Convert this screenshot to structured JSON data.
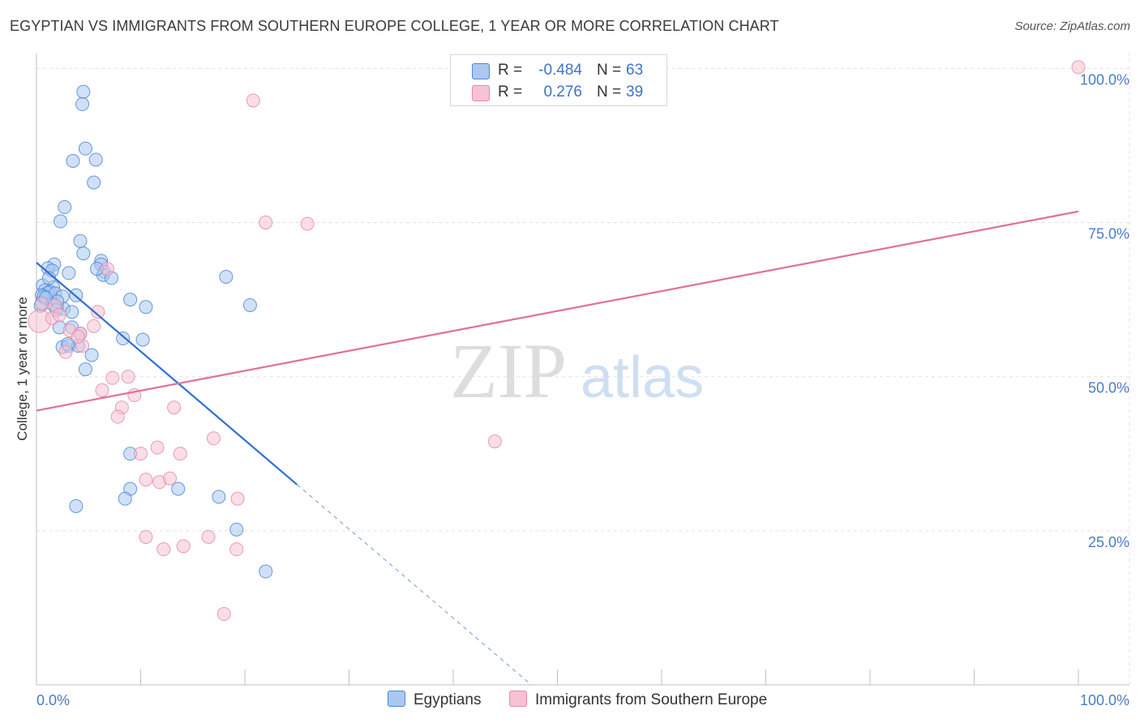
{
  "title": "EGYPTIAN VS IMMIGRANTS FROM SOUTHERN EUROPE COLLEGE, 1 YEAR OR MORE CORRELATION CHART",
  "source": "Source: ZipAtlas.com",
  "colors": {
    "blue_fill": "#aac8f0",
    "blue_stroke": "#4f86d6",
    "blue_line": "#2f6fd0",
    "pink_fill": "#f6c3d3",
    "pink_stroke": "#e889a8",
    "pink_line": "#e0709a",
    "tick_text": "#4a7cc7",
    "grid": "#e2e2e2"
  },
  "legend": {
    "r_label": "R =",
    "n_label": "N =",
    "rows": [
      {
        "series": "Egyptians",
        "r": "-0.484",
        "n": "63"
      },
      {
        "series": "Immigrants from Southern Europe",
        "r": "0.276",
        "n": "39"
      }
    ]
  },
  "watermark": {
    "zip": "ZIP",
    "atlas": "atlas"
  },
  "chart_data": {
    "type": "scatter",
    "title": "EGYPTIAN VS IMMIGRANTS FROM SOUTHERN EUROPE COLLEGE, 1 YEAR OR MORE CORRELATION CHART",
    "xlabel": "",
    "ylabel": "College, 1 year or more",
    "xlim": [
      0,
      100
    ],
    "ylim": [
      0,
      101.5
    ],
    "x_ticks": [
      {
        "value": 0,
        "label": "0.0%"
      },
      {
        "value": 100,
        "label": "100.0%"
      }
    ],
    "y_ticks": [
      {
        "value": 25,
        "label": "25.0%"
      },
      {
        "value": 50,
        "label": "50.0%"
      },
      {
        "value": 75,
        "label": "75.0%"
      },
      {
        "value": 100,
        "label": "100.0%"
      }
    ],
    "grid": true,
    "series": [
      {
        "name": "Egyptians",
        "color": "blue",
        "r": -0.484,
        "n": 63,
        "trend": {
          "x0": 0,
          "y0": 68.5,
          "x1": 25,
          "y1": 32.5,
          "dash_x1": 47.5,
          "dash_y1": 0
        },
        "points": [
          [
            4.5,
            96.2
          ],
          [
            4.4,
            94.2
          ],
          [
            4.7,
            87.0
          ],
          [
            3.5,
            85.0
          ],
          [
            5.7,
            85.2
          ],
          [
            5.5,
            81.5
          ],
          [
            2.7,
            77.5
          ],
          [
            2.3,
            75.2
          ],
          [
            4.2,
            72.0
          ],
          [
            4.5,
            70.0
          ],
          [
            6.2,
            68.8
          ],
          [
            6.2,
            68.2
          ],
          [
            1.7,
            68.2
          ],
          [
            1.1,
            67.6
          ],
          [
            1.5,
            67.2
          ],
          [
            6.5,
            67.0
          ],
          [
            6.4,
            66.5
          ],
          [
            3.1,
            66.8
          ],
          [
            7.2,
            66.0
          ],
          [
            18.2,
            66.2
          ],
          [
            0.6,
            64.8
          ],
          [
            1.6,
            64.5
          ],
          [
            0.8,
            64.0
          ],
          [
            1.3,
            63.8
          ],
          [
            1.1,
            63.6
          ],
          [
            0.5,
            63.2
          ],
          [
            1.8,
            63.5
          ],
          [
            2.5,
            63.0
          ],
          [
            3.8,
            63.2
          ],
          [
            9.0,
            62.5
          ],
          [
            0.5,
            62.0
          ],
          [
            1.5,
            61.8
          ],
          [
            2.0,
            61.2
          ],
          [
            2.6,
            61.0
          ],
          [
            3.4,
            60.5
          ],
          [
            10.5,
            61.3
          ],
          [
            20.5,
            61.6
          ],
          [
            2.2,
            58.0
          ],
          [
            3.4,
            58.0
          ],
          [
            4.2,
            57.0
          ],
          [
            8.3,
            56.2
          ],
          [
            10.2,
            56.0
          ],
          [
            2.5,
            54.8
          ],
          [
            3.1,
            55.0
          ],
          [
            4.0,
            55.0
          ],
          [
            5.3,
            53.5
          ],
          [
            4.7,
            51.2
          ],
          [
            9.0,
            37.5
          ],
          [
            9.0,
            31.8
          ],
          [
            13.6,
            31.8
          ],
          [
            8.5,
            30.2
          ],
          [
            17.5,
            30.5
          ],
          [
            3.8,
            29.0
          ],
          [
            19.2,
            25.2
          ],
          [
            22.0,
            18.4
          ],
          [
            0.4,
            61.5
          ],
          [
            2.0,
            62.2
          ],
          [
            1.2,
            66.0
          ],
          [
            0.7,
            63.0
          ],
          [
            5.8,
            67.5
          ],
          [
            1.9,
            60.8
          ],
          [
            3.0,
            55.3
          ],
          [
            0.9,
            62.8
          ]
        ]
      },
      {
        "name": "Immigrants from Southern Europe",
        "color": "pink",
        "r": 0.276,
        "n": 39,
        "trend": {
          "x0": 0,
          "y0": 44.5,
          "x1": 100,
          "y1": 76.8
        },
        "points": [
          [
            100,
            100.2
          ],
          [
            20.8,
            94.8
          ],
          [
            22.0,
            75.0
          ],
          [
            26.0,
            74.8
          ],
          [
            0.3,
            59.0
          ],
          [
            1.8,
            61.5
          ],
          [
            1.5,
            59.5
          ],
          [
            2.2,
            60.0
          ],
          [
            3.2,
            57.5
          ],
          [
            4.2,
            57.0
          ],
          [
            5.5,
            58.2
          ],
          [
            5.9,
            60.5
          ],
          [
            2.8,
            54.0
          ],
          [
            4.4,
            55.0
          ],
          [
            6.8,
            67.5
          ],
          [
            7.3,
            49.8
          ],
          [
            8.8,
            50.0
          ],
          [
            6.3,
            47.8
          ],
          [
            9.4,
            47.0
          ],
          [
            8.2,
            45.0
          ],
          [
            7.8,
            43.5
          ],
          [
            13.2,
            45.0
          ],
          [
            17.0,
            40.0
          ],
          [
            44.0,
            39.5
          ],
          [
            10.0,
            37.5
          ],
          [
            11.6,
            38.5
          ],
          [
            13.8,
            37.5
          ],
          [
            10.5,
            33.3
          ],
          [
            11.8,
            32.9
          ],
          [
            12.8,
            33.5
          ],
          [
            19.3,
            30.2
          ],
          [
            10.5,
            24.0
          ],
          [
            16.5,
            24.0
          ],
          [
            12.2,
            22.0
          ],
          [
            14.1,
            22.5
          ],
          [
            19.2,
            22.0
          ],
          [
            18.0,
            11.5
          ],
          [
            0.5,
            61.8
          ],
          [
            4.0,
            56.5
          ]
        ]
      }
    ]
  }
}
